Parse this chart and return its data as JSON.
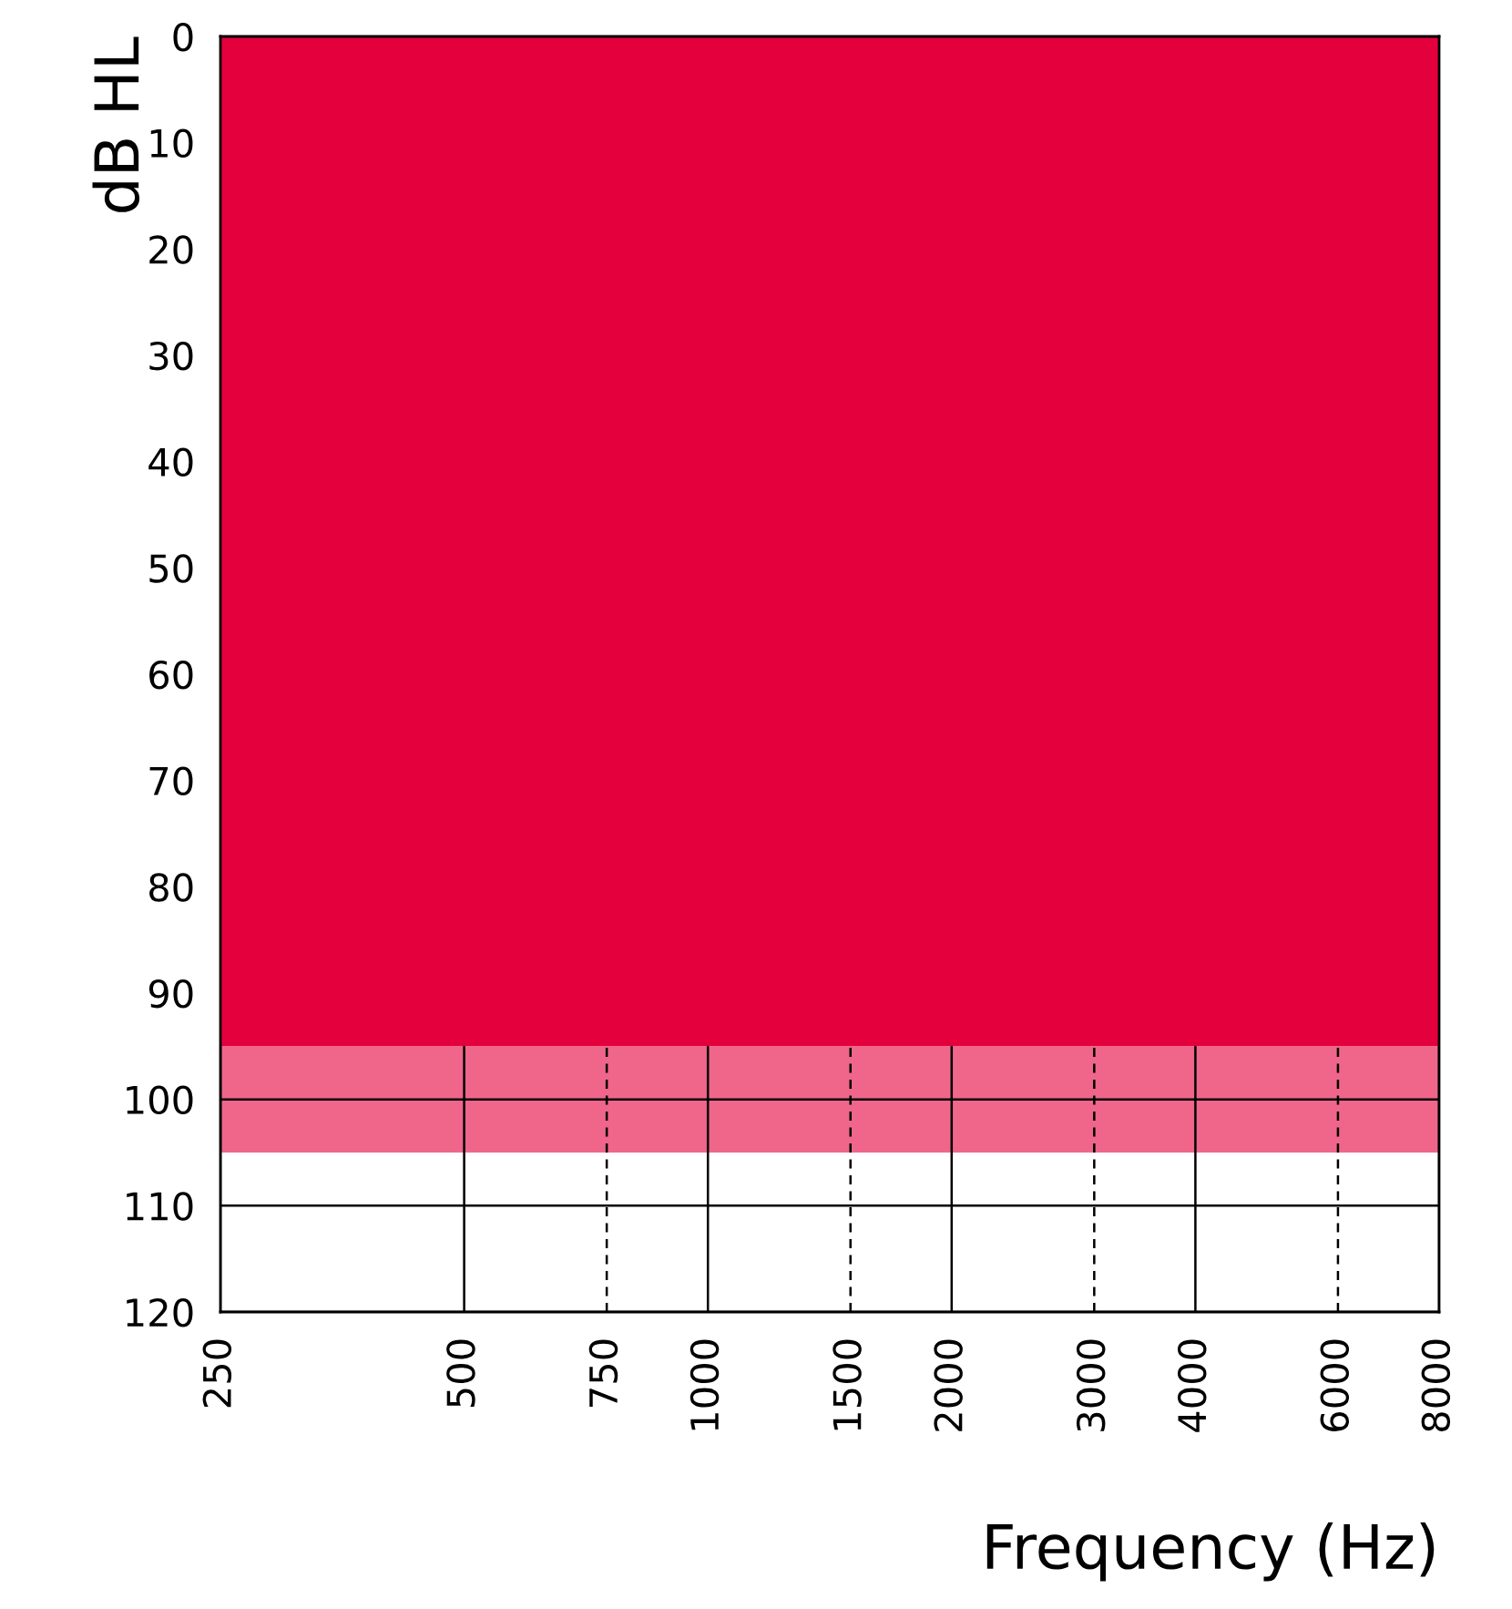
{
  "chart_data": {
    "type": "area",
    "xlabel": "Frequency (Hz)",
    "ylabel": "dB HL",
    "log": "x",
    "xlim": [
      250,
      8000
    ],
    "xticks": [
      250,
      500,
      750,
      1000,
      1500,
      2000,
      3000,
      4000,
      6000,
      8000
    ],
    "ylim": [
      120,
      0
    ],
    "yticks": [
      0,
      10,
      20,
      30,
      40,
      50,
      60,
      70,
      80,
      90,
      100,
      110,
      120
    ],
    "grid": true,
    "x": [
      250,
      8000
    ],
    "series": [
      {
        "color": "#e4003c",
        "values": [
          95,
          95
        ]
      }
    ],
    "bands": [
      {
        "axis": "y",
        "from": 95,
        "to": 105,
        "color": "#e4003c"
      }
    ]
  }
}
